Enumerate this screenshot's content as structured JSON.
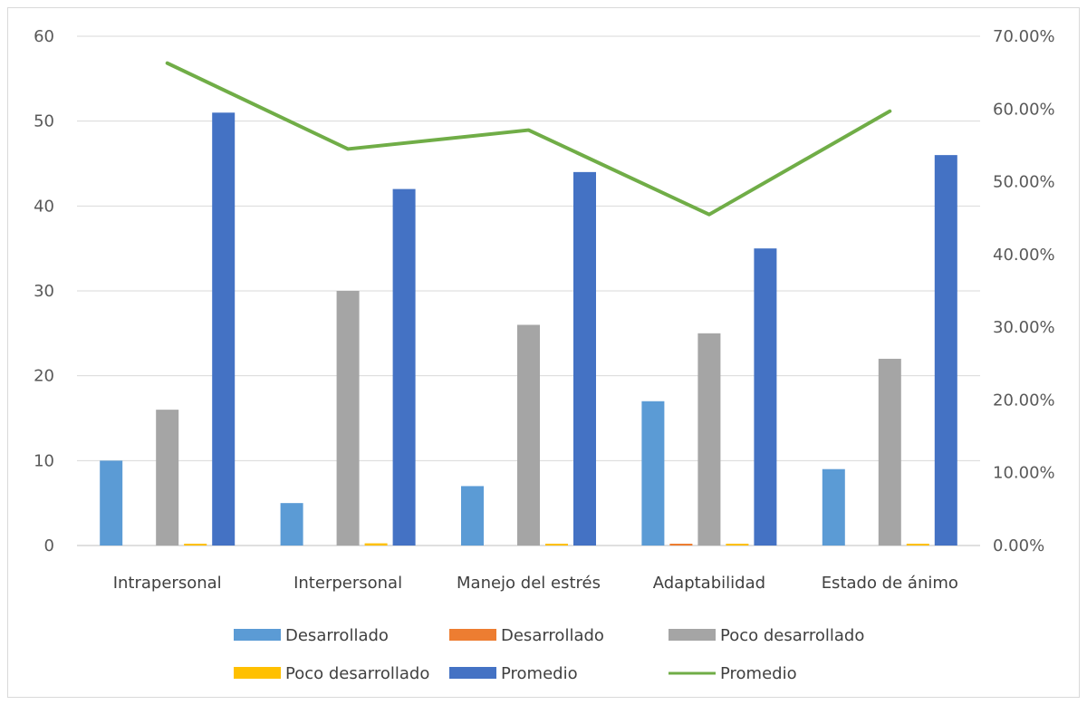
{
  "chart_data": {
    "type": "bar",
    "categories": [
      "Intrapersonal",
      "Interpersonal",
      "Manejo del estrés",
      "Adaptabilidad",
      "Estado de ánimo"
    ],
    "y_left": {
      "min": 0,
      "max": 60,
      "ticks": [
        "0",
        "10",
        "20",
        "30",
        "40",
        "50",
        "60"
      ]
    },
    "y_right": {
      "min": 0,
      "max": 0.7,
      "ticks": [
        "0.00%",
        "10.00%",
        "20.00%",
        "30.00%",
        "40.00%",
        "50.00%",
        "60.00%",
        "70.00%"
      ]
    },
    "grid": true,
    "legend_position": "bottom",
    "series": [
      {
        "name": "Desarrollado",
        "kind": "bar",
        "axis": "left",
        "color": "#5b9bd5",
        "values": [
          10,
          5,
          7,
          17,
          9
        ]
      },
      {
        "name": "Desarrollado",
        "kind": "bar",
        "axis": "right",
        "color": "#ed7d31",
        "values": [
          0,
          0,
          0,
          0.002,
          0
        ]
      },
      {
        "name": "Poco desarrollado",
        "kind": "bar",
        "axis": "left",
        "color": "#a5a5a5",
        "values": [
          16,
          30,
          26,
          25,
          22
        ]
      },
      {
        "name": "Poco desarrollado",
        "kind": "bar",
        "axis": "right",
        "color": "#ffc000",
        "values": [
          0.002,
          0.003,
          0.002,
          0.002,
          0.002
        ]
      },
      {
        "name": "Promedio",
        "kind": "bar",
        "axis": "left",
        "color": "#4472c4",
        "values": [
          51,
          42,
          44,
          35,
          46
        ]
      },
      {
        "name": "Promedio",
        "kind": "line",
        "axis": "right",
        "color": "#70ad47",
        "values": [
          0.663,
          0.545,
          0.571,
          0.455,
          0.597
        ]
      }
    ]
  }
}
